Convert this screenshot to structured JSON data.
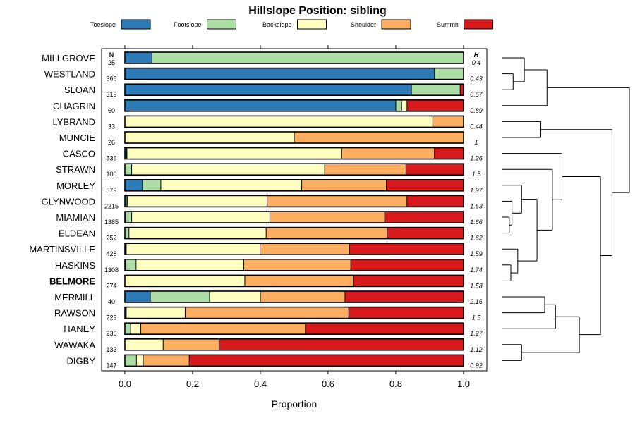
{
  "chart_data": {
    "type": "bar",
    "orientation": "horizontal",
    "stacked": true,
    "title": "Hillslope Position: sibling",
    "xlabel": "Proportion",
    "ylabel": "",
    "xlim": [
      0,
      1
    ],
    "x_ticks": [
      "0.0",
      "0.2",
      "0.4",
      "0.6",
      "0.8",
      "1.0"
    ],
    "n_header": "N",
    "h_header": "H",
    "highlight": "BELMORE",
    "legend_position": "top",
    "series": [
      {
        "name": "Toeslope",
        "color": "#2c7bb6"
      },
      {
        "name": "Footslope",
        "color": "#abdda4"
      },
      {
        "name": "Backslope",
        "color": "#ffffbf"
      },
      {
        "name": "Shoulder",
        "color": "#fdae61"
      },
      {
        "name": "Summit",
        "color": "#d7191c"
      }
    ],
    "rows": [
      {
        "label": "MILLGROVE",
        "n": "25",
        "h": "0.4",
        "values": [
          0.08,
          0.92,
          0,
          0,
          0
        ]
      },
      {
        "label": "WESTLAND",
        "n": "365",
        "h": "0.43",
        "values": [
          0.914,
          0.086,
          0,
          0,
          0
        ]
      },
      {
        "label": "SLOAN",
        "n": "319",
        "h": "0.67",
        "values": [
          0.846,
          0.144,
          0,
          0,
          0.01
        ]
      },
      {
        "label": "CHAGRIN",
        "n": "60",
        "h": "0.89",
        "values": [
          0.8,
          0.017,
          0.016,
          0,
          0.167
        ]
      },
      {
        "label": "LYBRAND",
        "n": "33",
        "h": "0.44",
        "values": [
          0,
          0,
          0.909,
          0.091,
          0
        ]
      },
      {
        "label": "MUNCIE",
        "n": "26",
        "h": "1",
        "values": [
          0,
          0,
          0.5,
          0.5,
          0
        ]
      },
      {
        "label": "CASCO",
        "n": "536",
        "h": "1.26",
        "values": [
          0.004,
          0.002,
          0.634,
          0.274,
          0.086
        ]
      },
      {
        "label": "STRAWN",
        "n": "100",
        "h": "1.5",
        "values": [
          0,
          0.02,
          0.57,
          0.24,
          0.17
        ]
      },
      {
        "label": "MORLEY",
        "n": "579",
        "h": "1.97",
        "values": [
          0.052,
          0.054,
          0.416,
          0.25,
          0.228
        ]
      },
      {
        "label": "GLYNWOOD",
        "n": "2215",
        "h": "1.53",
        "values": [
          0.004,
          0.003,
          0.413,
          0.413,
          0.167
        ]
      },
      {
        "label": "MIAMIAN",
        "n": "1385",
        "h": "1.66",
        "values": [
          0.003,
          0.017,
          0.408,
          0.339,
          0.233
        ]
      },
      {
        "label": "ELDEAN",
        "n": "252",
        "h": "1.62",
        "values": [
          0,
          0.012,
          0.405,
          0.357,
          0.226
        ]
      },
      {
        "label": "MARTINSVILLE",
        "n": "428",
        "h": "1.59",
        "values": [
          0.002,
          0.002,
          0.395,
          0.264,
          0.337
        ]
      },
      {
        "label": "HASKINS",
        "n": "1308",
        "h": "1.74",
        "values": [
          0.002,
          0.031,
          0.318,
          0.316,
          0.333
        ]
      },
      {
        "label": "BELMORE",
        "n": "274",
        "h": "1.58",
        "values": [
          0,
          0,
          0.354,
          0.321,
          0.325
        ]
      },
      {
        "label": "MERMILL",
        "n": "40",
        "h": "2.16",
        "values": [
          0.075,
          0.175,
          0.15,
          0.25,
          0.35
        ]
      },
      {
        "label": "RAWSON",
        "n": "729",
        "h": "1.5",
        "values": [
          0.003,
          0.001,
          0.174,
          0.483,
          0.339
        ]
      },
      {
        "label": "HANEY",
        "n": "236",
        "h": "1.27",
        "values": [
          0,
          0.017,
          0.03,
          0.486,
          0.467
        ]
      },
      {
        "label": "WAWAKA",
        "n": "133",
        "h": "1.12",
        "values": [
          0,
          0,
          0.113,
          0.165,
          0.722
        ]
      },
      {
        "label": "DIGBY",
        "n": "147",
        "h": "0.92",
        "values": [
          0,
          0.034,
          0.02,
          0.136,
          0.81
        ]
      }
    ],
    "dendrogram_merges": [
      [
        1,
        2,
        0.28
      ],
      [
        0,
        20,
        0.57
      ],
      [
        3,
        21,
        1.16
      ],
      [
        4,
        5,
        1.0
      ],
      [
        10,
        11,
        0.18
      ],
      [
        9,
        24,
        0.25
      ],
      [
        8,
        25,
        0.5
      ],
      [
        13,
        14,
        0.22
      ],
      [
        12,
        27,
        0.4
      ],
      [
        26,
        28,
        0.9
      ],
      [
        7,
        29,
        1.3
      ],
      [
        6,
        30,
        1.55
      ],
      [
        15,
        16,
        1.1
      ],
      [
        17,
        32,
        1.38
      ],
      [
        18,
        19,
        0.5
      ],
      [
        33,
        34,
        2.0
      ],
      [
        31,
        35,
        2.55
      ],
      [
        23,
        36,
        2.85
      ],
      [
        22,
        37,
        3.3
      ]
    ]
  }
}
